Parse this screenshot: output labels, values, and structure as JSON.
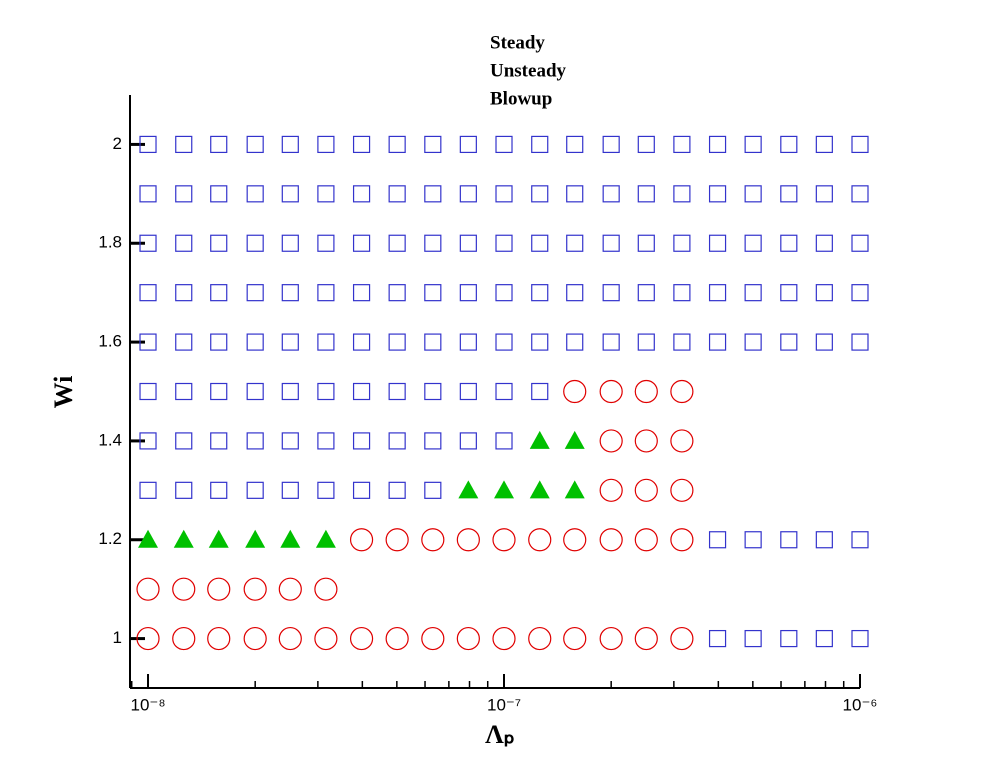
{
  "chart_data": {
    "type": "scatter",
    "x_label": "Λₚ",
    "y_label": "Wi",
    "xscale": "log",
    "xlim": [
      8.9e-09,
      1e-06
    ],
    "xticks": [
      {
        "value": 1e-08,
        "label": "10⁻⁸"
      },
      {
        "value": 1e-07,
        "label": "10⁻⁷"
      },
      {
        "value": 1e-06,
        "label": "10⁻⁶"
      }
    ],
    "ylim": [
      0.9,
      2.1
    ],
    "yticks": [
      1,
      1.2,
      1.4,
      1.6,
      1.8,
      2
    ],
    "series": [
      {
        "name": "Steady",
        "color": "#3333cc",
        "marker": "square",
        "x": [
          3.98e-07,
          5.01e-07,
          6.31e-07,
          7.94e-07,
          1e-06,
          3.98e-07,
          5.01e-07,
          6.31e-07,
          7.94e-07,
          1e-06,
          1e-08,
          1.26e-08,
          1.58e-08,
          2e-08,
          2.51e-08,
          3.16e-08,
          3.98e-08,
          5.01e-08,
          6.31e-08,
          1e-08,
          1.26e-08,
          1.58e-08,
          2e-08,
          2.51e-08,
          3.16e-08,
          3.98e-08,
          5.01e-08,
          6.31e-08,
          7.94e-08,
          1e-07,
          1e-08,
          1.26e-08,
          1.58e-08,
          2e-08,
          2.51e-08,
          3.16e-08,
          3.98e-08,
          5.01e-08,
          6.31e-08,
          7.94e-08,
          1e-07,
          1.26e-07,
          1e-08,
          1.26e-08,
          1.58e-08,
          2e-08,
          2.51e-08,
          3.16e-08,
          3.98e-08,
          5.01e-08,
          6.31e-08,
          7.94e-08,
          1e-07,
          1.26e-07,
          1.58e-07,
          2e-07,
          2.51e-07,
          3.16e-07,
          3.98e-07,
          5.01e-07,
          6.31e-07,
          7.94e-07,
          1e-06,
          1e-08,
          1.26e-08,
          1.58e-08,
          2e-08,
          2.51e-08,
          3.16e-08,
          3.98e-08,
          5.01e-08,
          6.31e-08,
          7.94e-08,
          1e-07,
          1.26e-07,
          1.58e-07,
          2e-07,
          2.51e-07,
          3.16e-07,
          3.98e-07,
          5.01e-07,
          6.31e-07,
          7.94e-07,
          1e-06,
          1e-08,
          1.26e-08,
          1.58e-08,
          2e-08,
          2.51e-08,
          3.16e-08,
          3.98e-08,
          5.01e-08,
          6.31e-08,
          7.94e-08,
          1e-07,
          1.26e-07,
          1.58e-07,
          2e-07,
          2.51e-07,
          3.16e-07,
          3.98e-07,
          5.01e-07,
          6.31e-07,
          7.94e-07,
          1e-06,
          1e-08,
          1.26e-08,
          1.58e-08,
          2e-08,
          2.51e-08,
          3.16e-08,
          3.98e-08,
          5.01e-08,
          6.31e-08,
          7.94e-08,
          1e-07,
          1.26e-07,
          1.58e-07,
          2e-07,
          2.51e-07,
          3.16e-07,
          3.98e-07,
          5.01e-07,
          6.31e-07,
          7.94e-07,
          1e-06,
          1e-08,
          1.26e-08,
          1.58e-08,
          2e-08,
          2.51e-08,
          3.16e-08,
          3.98e-08,
          5.01e-08,
          6.31e-08,
          7.94e-08,
          1e-07,
          1.26e-07,
          1.58e-07,
          2e-07,
          2.51e-07,
          3.16e-07,
          3.98e-07,
          5.01e-07,
          6.31e-07,
          7.94e-07,
          1e-06
        ],
        "y": [
          1,
          1,
          1,
          1,
          1,
          1.2,
          1.2,
          1.2,
          1.2,
          1.2,
          1.3,
          1.3,
          1.3,
          1.3,
          1.3,
          1.3,
          1.3,
          1.3,
          1.3,
          1.4,
          1.4,
          1.4,
          1.4,
          1.4,
          1.4,
          1.4,
          1.4,
          1.4,
          1.4,
          1.4,
          1.5,
          1.5,
          1.5,
          1.5,
          1.5,
          1.5,
          1.5,
          1.5,
          1.5,
          1.5,
          1.5,
          1.5,
          1.6,
          1.6,
          1.6,
          1.6,
          1.6,
          1.6,
          1.6,
          1.6,
          1.6,
          1.6,
          1.6,
          1.6,
          1.6,
          1.6,
          1.6,
          1.6,
          1.6,
          1.6,
          1.6,
          1.6,
          1.6,
          1.7,
          1.7,
          1.7,
          1.7,
          1.7,
          1.7,
          1.7,
          1.7,
          1.7,
          1.7,
          1.7,
          1.7,
          1.7,
          1.7,
          1.7,
          1.7,
          1.7,
          1.7,
          1.7,
          1.7,
          1.7,
          1.8,
          1.8,
          1.8,
          1.8,
          1.8,
          1.8,
          1.8,
          1.8,
          1.8,
          1.8,
          1.8,
          1.8,
          1.8,
          1.8,
          1.8,
          1.8,
          1.8,
          1.8,
          1.8,
          1.8,
          1.8,
          1.9,
          1.9,
          1.9,
          1.9,
          1.9,
          1.9,
          1.9,
          1.9,
          1.9,
          1.9,
          1.9,
          1.9,
          1.9,
          1.9,
          1.9,
          1.9,
          1.9,
          1.9,
          1.9,
          1.9,
          1.9,
          2,
          2,
          2,
          2,
          2,
          2,
          2,
          2,
          2,
          2,
          2,
          2,
          2,
          2,
          2,
          2,
          2,
          2,
          2,
          2,
          2
        ]
      },
      {
        "name": "Unsteady",
        "color": "#e00000",
        "marker": "circle",
        "x": [
          1e-08,
          1.26e-08,
          1.58e-08,
          2e-08,
          2.51e-08,
          3.16e-08,
          3.98e-08,
          5.01e-08,
          6.31e-08,
          7.94e-08,
          1e-07,
          1.26e-07,
          1.58e-07,
          2e-07,
          2.51e-07,
          3.16e-07,
          1e-08,
          1.26e-08,
          1.58e-08,
          2e-08,
          2.51e-08,
          3.16e-08,
          3.98e-08,
          5.01e-08,
          6.31e-08,
          7.94e-08,
          1e-07,
          1.26e-07,
          1.58e-07,
          2e-07,
          2.51e-07,
          3.16e-07,
          2e-07,
          2.51e-07,
          3.16e-07,
          2e-07,
          2.51e-07,
          3.16e-07,
          1.58e-07,
          2e-07,
          2.51e-07,
          3.16e-07
        ],
        "y": [
          1,
          1,
          1,
          1,
          1,
          1,
          1,
          1,
          1,
          1,
          1,
          1,
          1,
          1,
          1,
          1,
          1.1,
          1.1,
          1.1,
          1.1,
          1.1,
          1.1,
          1.2,
          1.2,
          1.2,
          1.2,
          1.2,
          1.2,
          1.2,
          1.2,
          1.2,
          1.2,
          1.3,
          1.3,
          1.3,
          1.4,
          1.4,
          1.4,
          1.5,
          1.5,
          1.5,
          1.5
        ]
      },
      {
        "name": "Blowup",
        "color": "#00c000",
        "marker": "triangle",
        "x": [
          1e-08,
          1.26e-08,
          1.58e-08,
          2e-08,
          2.51e-08,
          3.16e-08,
          7.94e-08,
          1e-07,
          1.26e-07,
          1.58e-07,
          1.26e-07,
          1.58e-07
        ],
        "y": [
          1.2,
          1.2,
          1.2,
          1.2,
          1.2,
          1.2,
          1.3,
          1.3,
          1.3,
          1.3,
          1.4,
          1.4
        ]
      }
    ]
  }
}
